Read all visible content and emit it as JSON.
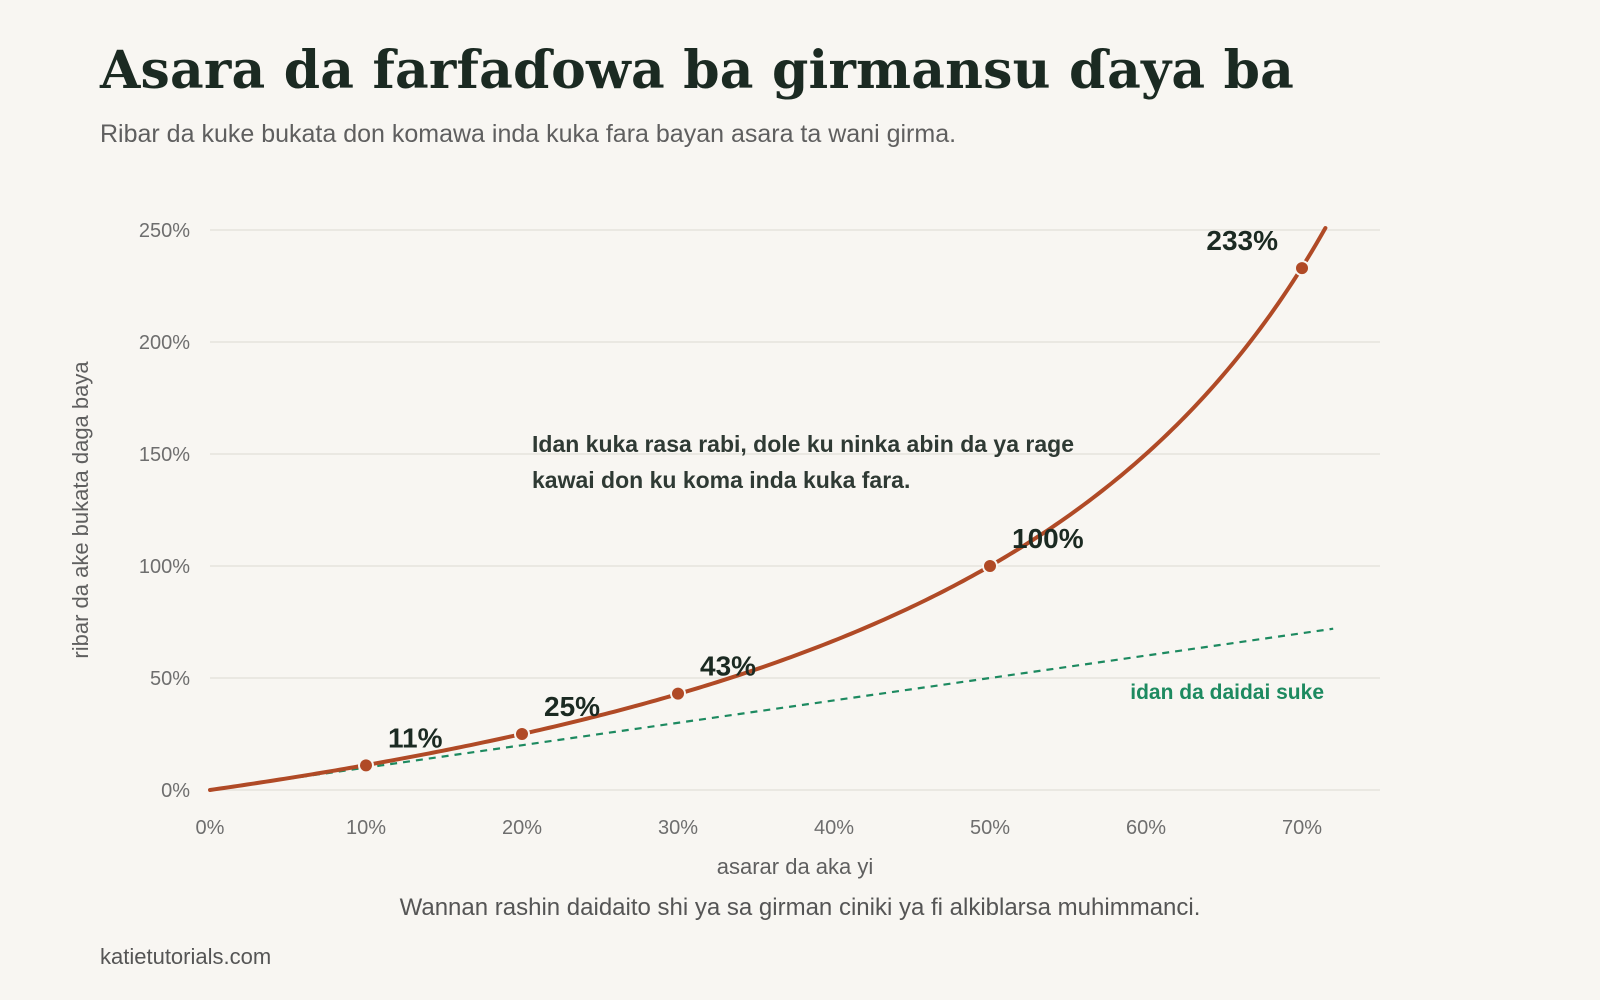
{
  "title": "Asara da farfaɗowa ba girmansu ɗaya ba",
  "subtitle": "Ribar da kuke bukata don komawa inda kuka fara bayan asara ta wani girma.",
  "caption": "Wannan rashin daidaito shi ya sa girman ciniki ya fi alkiblarsa muhimmanci.",
  "source": "katietutorials.com",
  "colors": {
    "background": "#f8f6f2",
    "recovery_line": "#b04a26",
    "reference_line": "#1d8a60",
    "gridline": "#e6e3dd"
  },
  "chart_data": {
    "type": "line",
    "xlabel": "asarar da aka yi",
    "ylabel": "ribar da ake bukata daga baya",
    "xlim": [
      0,
      0.7
    ],
    "ylim": [
      0,
      2.5
    ],
    "x_ticks": [
      "0%",
      "10%",
      "20%",
      "30%",
      "40%",
      "50%",
      "60%",
      "70%"
    ],
    "y_ticks": [
      "0%",
      "50%",
      "100%",
      "150%",
      "200%",
      "250%"
    ],
    "grid": "horizontal",
    "series": [
      {
        "values_formula": "x / (1 - x)",
        "color": "#b04a26",
        "style": "solid",
        "points": [
          {
            "x": 0.1,
            "y": 0.11,
            "label": "11%"
          },
          {
            "x": 0.2,
            "y": 0.25,
            "label": "25%"
          },
          {
            "x": 0.3,
            "y": 0.43,
            "label": "43%"
          },
          {
            "x": 0.5,
            "y": 1.0,
            "label": "100%"
          },
          {
            "x": 0.7,
            "y": 2.33,
            "label": "233%"
          }
        ]
      },
      {
        "name": "idan da daidai suke",
        "values_formula": "x",
        "color": "#1d8a60",
        "style": "dashed"
      }
    ],
    "annotations": [
      "Idan kuka rasa rabi, dole ku ninka abin da ya rage",
      "kawai don ku koma inda kuka fara."
    ]
  }
}
